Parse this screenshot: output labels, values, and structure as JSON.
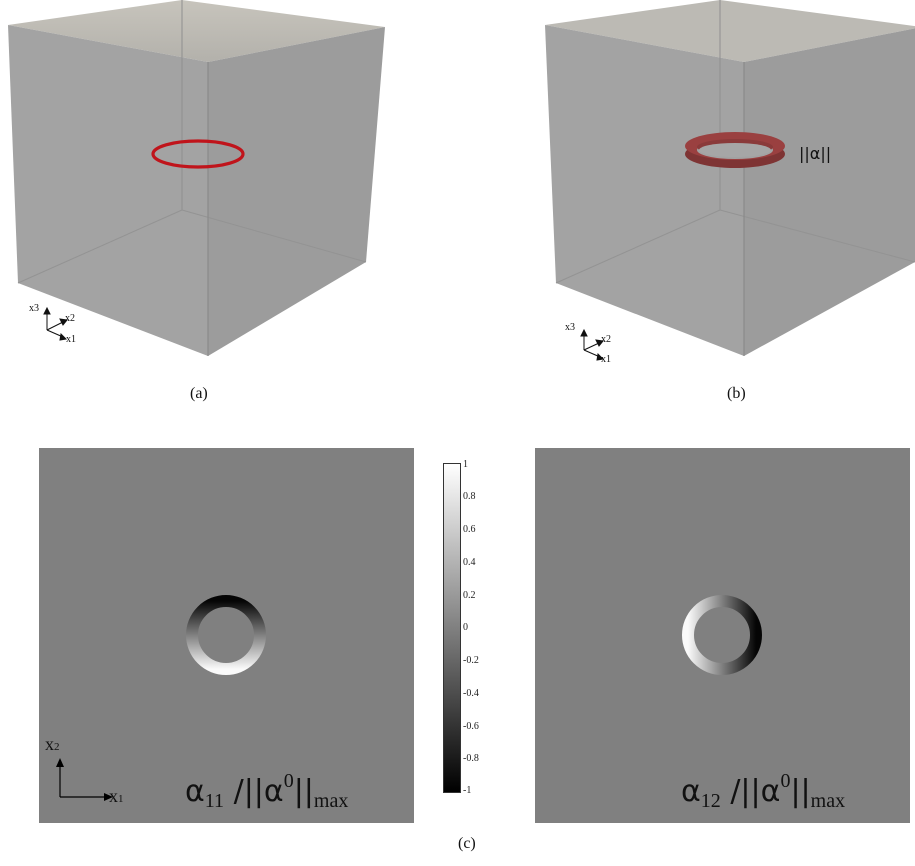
{
  "panel_a": {
    "caption": "(a)",
    "axes": {
      "up": "x3",
      "depth": "x2",
      "right": "x1"
    }
  },
  "panel_b": {
    "caption": "(b)",
    "label": "||α||",
    "axes": {
      "up": "x3",
      "depth": "x2",
      "right": "x1"
    }
  },
  "panel_c": {
    "caption": "(c)",
    "left_field": {
      "symbol": "α",
      "index": "11",
      "norm": "/||α",
      "sup": "0",
      "norm_end": "||",
      "max": "max"
    },
    "right_field": {
      "symbol": "α",
      "index": "12",
      "norm": "/||α",
      "sup": "0",
      "norm_end": "||",
      "max": "max"
    },
    "axes": {
      "x": "x",
      "x_sub": "1",
      "y": "x",
      "y_sub": "2"
    },
    "colorbar": {
      "ticks": [
        "1",
        "0.8",
        "0.6",
        "0.4",
        "0.2",
        "0",
        "-0.2",
        "-0.4",
        "-0.6",
        "-0.8",
        "-1"
      ],
      "range": [
        -1,
        1
      ]
    }
  },
  "colors": {
    "loop": "#c0141b",
    "tube": "#9a3d3d",
    "background_field": "#808080",
    "box_face": "#a8a8a8"
  }
}
